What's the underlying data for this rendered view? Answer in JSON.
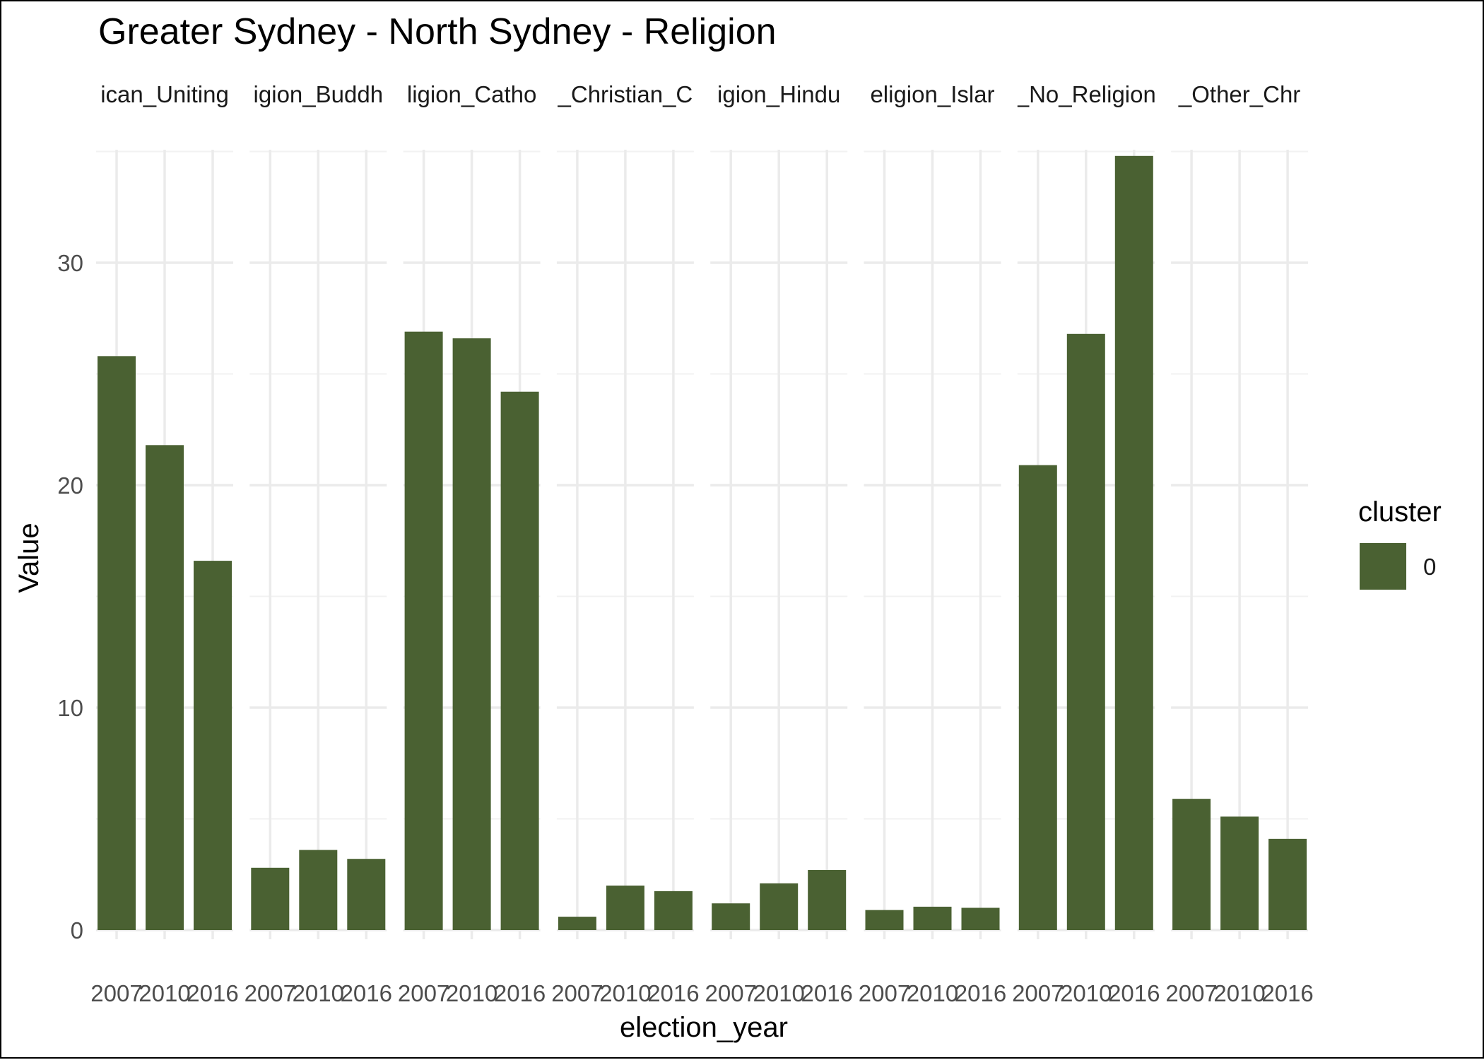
{
  "chart_data": {
    "type": "bar",
    "title": "Greater Sydney - North Sydney - Religion",
    "xlabel": "election_year",
    "ylabel": "Value",
    "ylim": [
      0,
      36
    ],
    "y_ticks": [
      0,
      10,
      20,
      30
    ],
    "categories": [
      "2007",
      "2010",
      "2016"
    ],
    "facet_labels": [
      "ican_Uniting",
      "igion_Buddh",
      "ligion_Catho",
      "_Christian_C",
      "igion_Hindu",
      "eligion_Islar",
      "_No_Religion",
      "_Other_Chr"
    ],
    "facets": [
      {
        "label": "ican_Uniting",
        "values": [
          25.8,
          21.8,
          16.6
        ]
      },
      {
        "label": "igion_Buddh",
        "values": [
          2.8,
          3.6,
          3.2
        ]
      },
      {
        "label": "ligion_Catho",
        "values": [
          26.9,
          26.6,
          24.2
        ]
      },
      {
        "label": "_Christian_C",
        "values": [
          0.6,
          2.0,
          1.75
        ]
      },
      {
        "label": "igion_Hindu",
        "values": [
          1.2,
          2.1,
          2.7
        ]
      },
      {
        "label": "eligion_Islar",
        "values": [
          0.9,
          1.05,
          1.0
        ]
      },
      {
        "label": "_No_Religion",
        "values": [
          20.9,
          26.8,
          34.8
        ]
      },
      {
        "label": "_Other_Chr",
        "values": [
          5.9,
          5.1,
          4.1
        ]
      }
    ],
    "legend": {
      "title": "cluster",
      "entries": [
        "0"
      ],
      "position": "right"
    },
    "bar_color": "#4a6132",
    "grid": true
  }
}
